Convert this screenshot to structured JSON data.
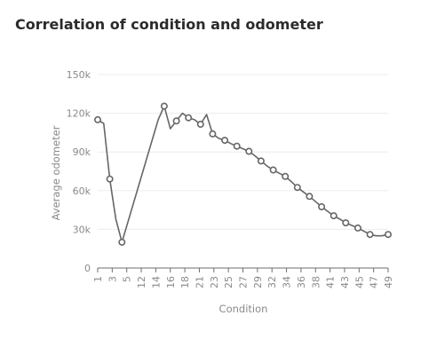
{
  "card": {
    "title": "Correlation of condition and odometer"
  },
  "chart_data": {
    "type": "line",
    "title": "Correlation of condition and odometer",
    "xlabel": "Condition",
    "ylabel": "Average odometer",
    "ylim": [
      0,
      150000
    ],
    "y_ticks": [
      0,
      30000,
      60000,
      90000,
      120000,
      150000
    ],
    "y_tick_labels": [
      "0",
      "30k",
      "60k",
      "90k",
      "120k",
      "150k"
    ],
    "x_tick_labels": [
      "1",
      "3",
      "5",
      "12",
      "14",
      "16",
      "18",
      "21",
      "23",
      "25",
      "27",
      "29",
      "32",
      "34",
      "36",
      "38",
      "41",
      "43",
      "45",
      "47",
      "49"
    ],
    "grid": true,
    "legend": "none",
    "color": "#666666",
    "series": [
      {
        "x": [
          1,
          2,
          3,
          4,
          5,
          11,
          12,
          13,
          14,
          15,
          16,
          17,
          18,
          19,
          20,
          21,
          22,
          23,
          24,
          25,
          26,
          27,
          28,
          29,
          30,
          31,
          32,
          33,
          34,
          35,
          36,
          37,
          38,
          39,
          40,
          41,
          42,
          43,
          44,
          45,
          46,
          47,
          48,
          49
        ],
        "values": [
          115000,
          112000,
          69000,
          38000,
          20000,
          115000,
          125500,
          108000,
          114000,
          120000,
          116500,
          115000,
          111500,
          119000,
          104000,
          100500,
          99000,
          96500,
          94500,
          92500,
          90500,
          87000,
          83000,
          79000,
          76000,
          73500,
          71000,
          67000,
          62500,
          59000,
          55500,
          51500,
          47500,
          44000,
          40500,
          38000,
          35000,
          33000,
          31000,
          28500,
          26000,
          25000,
          25000,
          26000
        ],
        "markers": [
          true,
          false,
          true,
          false,
          true,
          false,
          true,
          false,
          true,
          false,
          true,
          false,
          true,
          false,
          true,
          false,
          true,
          false,
          true,
          false,
          true,
          false,
          true,
          false,
          true,
          false,
          true,
          false,
          true,
          false,
          true,
          false,
          true,
          false,
          true,
          false,
          true,
          false,
          true,
          false,
          true,
          false,
          false,
          true
        ]
      }
    ]
  }
}
